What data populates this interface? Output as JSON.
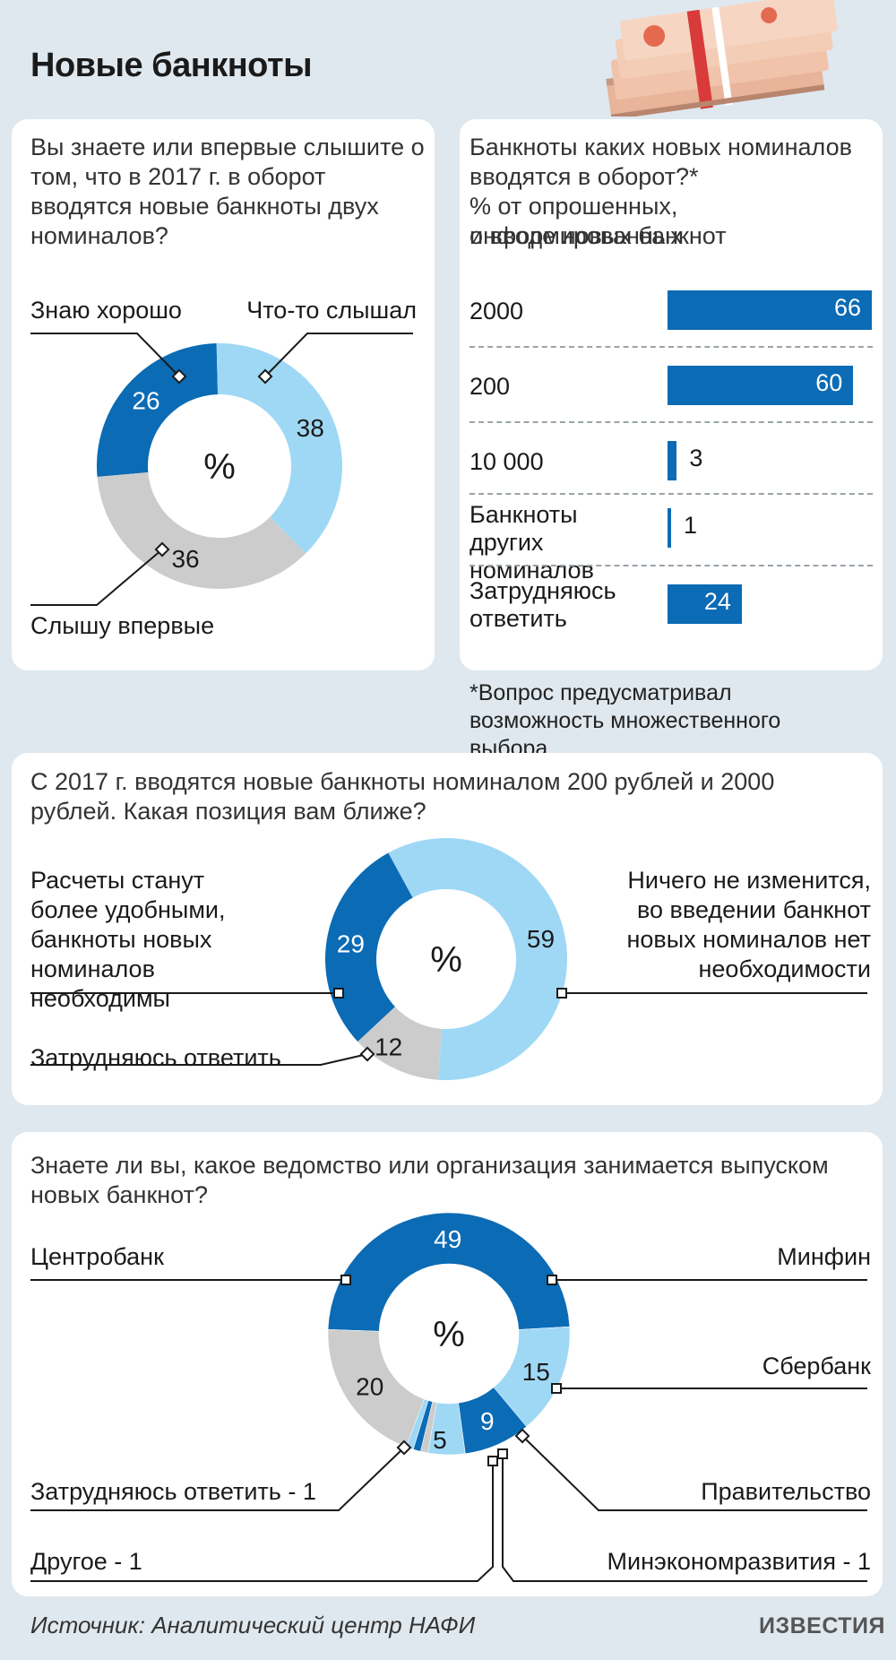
{
  "header": {
    "title": "Новые банкноты"
  },
  "colors": {
    "dark_blue": "#0b6bb5",
    "light_blue": "#9fd8f5",
    "gray": "#cccccc"
  },
  "illustration": {
    "icon": "banknote-stack-icon"
  },
  "q1": {
    "question": "Вы знаете или впервые слышите о том, что в 2017 г. в оборот вводятся новые банкноты двух номиналов?",
    "labels": {
      "know_well": "Знаю хорошо",
      "heard": "Что-то слышал",
      "first_time": "Слышу впервые"
    }
  },
  "q2": {
    "question_line1": "Банкноты каких новых номиналов",
    "question_line2": "вводятся в оборот?*",
    "question_line3": "% от опрошенных, информированных",
    "question_line4": "о вводе новых банкнот",
    "footnote": "*Вопрос предусматривал возможность множественного выбора."
  },
  "q3": {
    "question": "С 2017 г. вводятся новые банкноты номиналом 200 рублей и 2000 рублей. Какая позиция вам ближе?",
    "labels": {
      "convenient": "Расчеты станут более удобными, банкноты новых номиналов необходимы",
      "nothing": "Ничего не изменится, во введении банкнот новых номиналов нет необходимости",
      "hard": "Затрудняюсь ответить"
    }
  },
  "q4": {
    "question": "Знаете ли вы, какое ведомство или организация занимается выпуском новых банкнот?",
    "labels": {
      "cb": "Центробанк",
      "minfin": "Минфин",
      "sber": "Сбербанк",
      "gov": "Правительство",
      "hard": "Затрудняюсь ответить - 1",
      "other": "Другое - 1",
      "mer": "Минэкономразвития - 1"
    }
  },
  "footer": {
    "source": "Источник: Аналитический центр НАФИ",
    "logo": "ИЗВЕСТИЯ"
  },
  "chart_data": [
    {
      "type": "pie",
      "center_label": "%",
      "slices": [
        {
          "name": "Знаю хорошо",
          "value": 26,
          "color": "#0b6bb5"
        },
        {
          "name": "Что-то слышал",
          "value": 38,
          "color": "#9fd8f5"
        },
        {
          "name": "Слышу впервые",
          "value": 36,
          "color": "#cccccc"
        }
      ]
    },
    {
      "type": "bar",
      "orientation": "horizontal",
      "categories": [
        "2000",
        "200",
        "10 000",
        "Банкноты других номиналов",
        "Затрудняюсь ответить"
      ],
      "values": [
        66,
        60,
        3,
        1,
        24
      ],
      "xlim": [
        0,
        70
      ]
    },
    {
      "type": "pie",
      "center_label": "%",
      "slices": [
        {
          "name": "Расчеты станут более удобными, банкноты новых номиналов необходимы",
          "value": 29,
          "color": "#0b6bb5"
        },
        {
          "name": "Ничего не изменится, во введении банкнот новых номиналов нет необходимости",
          "value": 59,
          "color": "#9fd8f5"
        },
        {
          "name": "Затрудняюсь ответить",
          "value": 12,
          "color": "#cccccc"
        }
      ]
    },
    {
      "type": "pie",
      "center_label": "%",
      "slices": [
        {
          "name": "Центробанк",
          "value": 49,
          "color": "#0b6bb5"
        },
        {
          "name": "Минфин",
          "value": 15,
          "color": "#9fd8f5"
        },
        {
          "name": "Сбербанк",
          "value": 9,
          "color": "#0b6bb5"
        },
        {
          "name": "Правительство",
          "value": 5,
          "color": "#9fd8f5"
        },
        {
          "name": "Минэкономразвития",
          "value": 1,
          "color": "#cccccc"
        },
        {
          "name": "Другое",
          "value": 1,
          "color": "#0b6bb5"
        },
        {
          "name": "Затрудняюсь ответить",
          "value": 1,
          "color": "#9fd8f5"
        },
        {
          "name": "",
          "value": 20,
          "color": "#cccccc"
        }
      ]
    }
  ]
}
